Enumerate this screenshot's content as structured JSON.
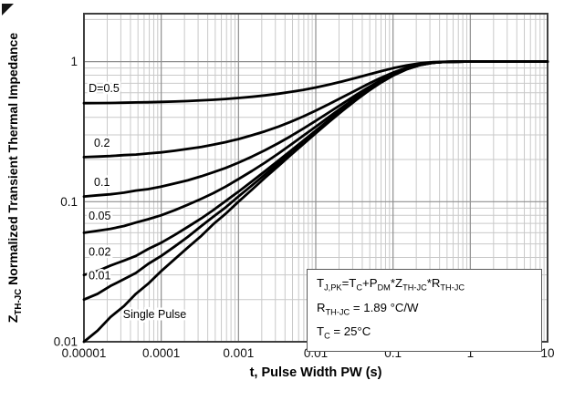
{
  "annotation": {
    "line1": [
      [
        "T",
        "n"
      ],
      [
        "J,PK",
        "s"
      ],
      [
        "=T",
        "n"
      ],
      [
        "C",
        "s"
      ],
      [
        "+P",
        "n"
      ],
      [
        "DM",
        "s"
      ],
      [
        "*Z",
        "n"
      ],
      [
        "TH-JC",
        "s"
      ],
      [
        "*R",
        "n"
      ],
      [
        "TH-JC",
        "s"
      ]
    ],
    "line2": [
      [
        "R",
        "n"
      ],
      [
        "TH-JC",
        "s"
      ],
      [
        " = 1.89 °C/W",
        "n"
      ]
    ],
    "line3": [
      [
        "T",
        "n"
      ],
      [
        "C",
        "s"
      ],
      [
        " = 25°C",
        "n"
      ]
    ]
  },
  "chart_data": {
    "type": "line",
    "title": "",
    "x_scale": "log",
    "y_scale": "log",
    "xlabel": "t, Pulse Width PW (s)",
    "ylabel": "ZTH-JC Normalized Transient Thermal Impedance",
    "ylabel_parts": [
      [
        "Z",
        "n"
      ],
      [
        "TH-JC",
        "s"
      ],
      [
        " Normalized Transient Thermal Impedance",
        "n"
      ]
    ],
    "xlim": [
      1e-05,
      10
    ],
    "ylim": [
      0.01,
      2.2
    ],
    "x_ticks": [
      1e-05,
      0.0001,
      0.001,
      0.01,
      0.1,
      1,
      10
    ],
    "x_tick_labels": [
      "0.00001",
      "0.0001",
      "0.001",
      "0.01",
      "0.1",
      "1",
      "10"
    ],
    "y_ticks": [
      0.01,
      0.1,
      1
    ],
    "y_tick_labels": [
      "0.01",
      "0.1",
      "1"
    ],
    "grid": "on",
    "x": [
      1e-05,
      1.5e-05,
      2.2e-05,
      3.3e-05,
      4.7e-05,
      6.8e-05,
      0.0001,
      0.00015,
      0.00022,
      0.00033,
      0.00047,
      0.00068,
      0.001,
      0.0015,
      0.0022,
      0.0033,
      0.0047,
      0.0068,
      0.01,
      0.015,
      0.022,
      0.033,
      0.047,
      0.068,
      0.1,
      0.15,
      0.22,
      0.33,
      0.47,
      0.68,
      1,
      1.5,
      2.2,
      3.3,
      4.7,
      6.8,
      10
    ],
    "series": [
      {
        "name": "D=0.5",
        "values": [
          0.505,
          0.506,
          0.507,
          0.509,
          0.511,
          0.513,
          0.516,
          0.519,
          0.523,
          0.529,
          0.534,
          0.541,
          0.55,
          0.561,
          0.574,
          0.59,
          0.607,
          0.628,
          0.654,
          0.687,
          0.722,
          0.765,
          0.806,
          0.851,
          0.898,
          0.941,
          0.972,
          0.991,
          0.998,
          1,
          1,
          1,
          1,
          1,
          1,
          1,
          1
        ]
      },
      {
        "name": "D=0.2",
        "values": [
          0.208,
          0.21,
          0.212,
          0.215,
          0.217,
          0.221,
          0.225,
          0.231,
          0.238,
          0.246,
          0.255,
          0.266,
          0.28,
          0.298,
          0.318,
          0.344,
          0.371,
          0.405,
          0.447,
          0.499,
          0.556,
          0.624,
          0.69,
          0.762,
          0.836,
          0.905,
          0.954,
          0.985,
          0.996,
          1,
          1,
          1,
          1,
          1,
          1,
          1,
          1
        ]
      },
      {
        "name": "D=0.1",
        "values": [
          0.109,
          0.111,
          0.113,
          0.116,
          0.12,
          0.123,
          0.128,
          0.135,
          0.142,
          0.152,
          0.162,
          0.174,
          0.19,
          0.21,
          0.233,
          0.262,
          0.293,
          0.331,
          0.378,
          0.436,
          0.5,
          0.577,
          0.651,
          0.732,
          0.816,
          0.893,
          0.949,
          0.983,
          0.996,
          0.999,
          1,
          1,
          1,
          1,
          1,
          1,
          1
        ]
      },
      {
        "name": "D=0.05",
        "values": [
          0.06,
          0.062,
          0.064,
          0.067,
          0.071,
          0.075,
          0.08,
          0.087,
          0.095,
          0.105,
          0.115,
          0.128,
          0.145,
          0.166,
          0.19,
          0.221,
          0.254,
          0.294,
          0.343,
          0.405,
          0.472,
          0.554,
          0.632,
          0.717,
          0.805,
          0.887,
          0.946,
          0.982,
          0.996,
          0.999,
          1,
          1,
          1,
          1,
          1,
          1,
          1
        ]
      },
      {
        "name": "D=0.02",
        "values": [
          0.03,
          0.032,
          0.035,
          0.038,
          0.041,
          0.046,
          0.051,
          0.058,
          0.066,
          0.076,
          0.087,
          0.101,
          0.118,
          0.14,
          0.165,
          0.197,
          0.23,
          0.271,
          0.322,
          0.386,
          0.456,
          0.54,
          0.62,
          0.708,
          0.799,
          0.884,
          0.944,
          0.982,
          0.996,
          0.999,
          1,
          1,
          1,
          1,
          1,
          1,
          1
        ]
      },
      {
        "name": "D=0.01",
        "values": [
          0.02,
          0.022,
          0.025,
          0.028,
          0.031,
          0.036,
          0.041,
          0.048,
          0.056,
          0.067,
          0.078,
          0.091,
          0.109,
          0.131,
          0.156,
          0.188,
          0.222,
          0.264,
          0.315,
          0.379,
          0.45,
          0.535,
          0.616,
          0.705,
          0.797,
          0.883,
          0.944,
          0.982,
          0.996,
          0.999,
          1,
          1,
          1,
          1,
          1,
          1,
          1
        ]
      },
      {
        "name": "Single Pulse",
        "values": [
          0.01,
          0.012,
          0.015,
          0.018,
          0.022,
          0.026,
          0.032,
          0.039,
          0.047,
          0.057,
          0.069,
          0.082,
          0.1,
          0.122,
          0.148,
          0.18,
          0.214,
          0.256,
          0.308,
          0.373,
          0.444,
          0.53,
          0.612,
          0.702,
          0.795,
          0.881,
          0.943,
          0.981,
          0.995,
          0.999,
          1,
          1,
          1,
          1,
          1,
          1,
          1
        ]
      }
    ],
    "curve_labels": [
      {
        "text": "D=0.5",
        "t": 1.15e-05,
        "z": 0.645
      },
      {
        "text": "0.2",
        "t": 1.35e-05,
        "z": 0.262
      },
      {
        "text": "0.1",
        "t": 1.35e-05,
        "z": 0.138
      },
      {
        "text": "0.05",
        "t": 1.15e-05,
        "z": 0.079
      },
      {
        "text": "0.02",
        "t": 1.15e-05,
        "z": 0.0438
      },
      {
        "text": "0.01",
        "t": 1.15e-05,
        "z": 0.0296
      },
      {
        "text": "Single Pulse",
        "t": 3.2e-05,
        "z": 0.0157
      }
    ],
    "legend_position": "none",
    "colors": {
      "curve": "#000000",
      "grid_minor": "#c9c9c9",
      "grid_major": "#8f8f8f",
      "frame": "#3f3f3f"
    }
  }
}
